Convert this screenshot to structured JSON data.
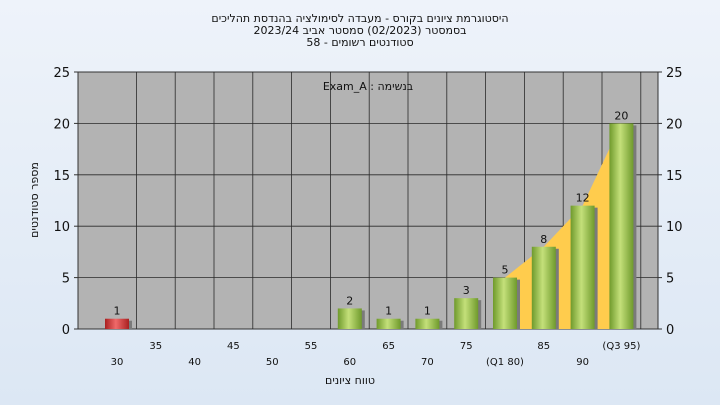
{
  "chart_data": {
    "type": "bar",
    "title_lines": [
      "היסטוגרמת ציונים בקורס - מעבדה לסימולציה בהנדסת תהליכים",
      "בסמסטר  (02/2023)  סמסטר אביב 2023/24",
      "סטודנטים רשומים - 58"
    ],
    "annotation": "בנשימה : Exam_A",
    "ylabel": "מספר סטודנטים",
    "xlabel": "טווח ציונים",
    "ylim": [
      0,
      25
    ],
    "yticks": [
      0,
      5,
      10,
      15,
      20,
      25
    ],
    "categories": [
      "30",
      "35",
      "40",
      "45",
      "50",
      "55",
      "60",
      "65",
      "70",
      "75",
      "80",
      "85",
      "90",
      "95"
    ],
    "category_labels": [
      "30",
      "35",
      "40",
      "45",
      "50",
      "55",
      "60",
      "65",
      "70",
      "75",
      "(Q1 80)",
      "85",
      "90",
      "(Q3 95)"
    ],
    "values": [
      1,
      0,
      0,
      0,
      0,
      0,
      2,
      1,
      1,
      3,
      5,
      8,
      12,
      20
    ],
    "grid": true,
    "colors": {
      "plot_bg": "#b3b3b3",
      "low_bar": "#d83a3a",
      "bar": "#9cc24a",
      "bar_dark": "#5e8a22",
      "iqr_area": "#ffcc4d",
      "grid": "#2a2a2a"
    }
  }
}
